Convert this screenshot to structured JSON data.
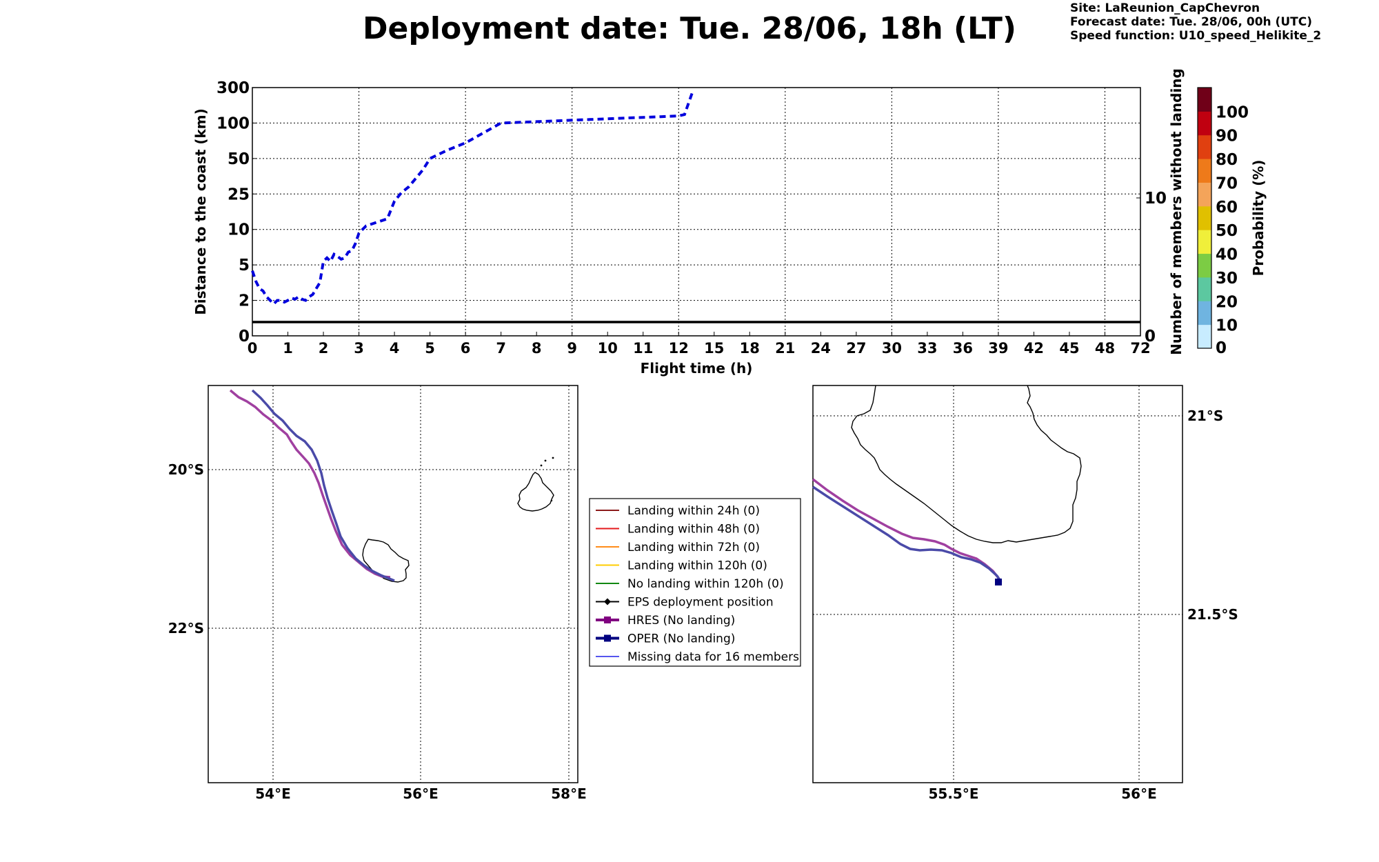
{
  "header": {
    "title": "Deployment date: Tue. 28/06, 18h (LT)",
    "site": "Site: LaReunion_CapChevron",
    "forecast_date": "Forecast date: Tue. 28/06, 00h (UTC)",
    "speed_function": "Speed function: U10_speed_Helikite_2"
  },
  "chart_data": [
    {
      "type": "line",
      "xlabel": "Flight time (h)",
      "ylabel": "Distance to the coast (km)",
      "ylabel_right": "Number of members without landing",
      "x_ticks": [
        "0",
        "1",
        "2",
        "3",
        "4",
        "5",
        "6",
        "7",
        "8",
        "9",
        "10",
        "11",
        "12",
        "15",
        "18",
        "21",
        "24",
        "27",
        "30",
        "33",
        "36",
        "39",
        "42",
        "45",
        "48",
        "72"
      ],
      "y_ticks": [
        "0",
        "2",
        "5",
        "10",
        "25",
        "50",
        "100",
        "300"
      ],
      "y_right_ticks": [
        "0",
        "10"
      ],
      "grid": true,
      "series": [
        {
          "style": "dashed",
          "color": "#0000dd",
          "x": [
            0,
            0.1,
            0.2,
            0.3,
            0.4,
            0.5,
            0.6,
            0.7,
            0.8,
            0.9,
            1.0,
            1.1,
            1.2,
            1.3,
            1.4,
            1.5,
            1.6,
            1.7,
            1.8,
            1.9,
            2.0,
            2.1,
            2.2,
            2.3,
            2.4,
            2.5,
            2.6,
            2.7,
            2.8,
            2.9,
            3.0,
            3.2,
            3.4,
            3.6,
            3.8,
            4.0,
            4.2,
            4.4,
            4.6,
            4.8,
            5.0,
            5.5,
            6.0,
            6.5,
            7.0,
            7.5,
            8.0,
            8.5,
            9.0,
            9.5,
            10.0,
            10.5,
            11.0,
            11.5,
            12.0,
            12.5,
            13.2
          ],
          "y": [
            4.5,
            3.6,
            3.0,
            2.8,
            2.3,
            2.0,
            1.8,
            2.0,
            2.0,
            1.9,
            2.0,
            2.2,
            2.1,
            2.3,
            2.1,
            2.0,
            2.3,
            2.5,
            3.0,
            3.5,
            5.5,
            6.0,
            5.5,
            6.5,
            6.2,
            5.8,
            6.0,
            6.8,
            7.0,
            8.0,
            9.5,
            11.5,
            12.5,
            13.5,
            14.5,
            22,
            26,
            30,
            36,
            42,
            50,
            62,
            72,
            86,
            100,
            104,
            108,
            112,
            116,
            120,
            124,
            128,
            132,
            136,
            140,
            148,
            280
          ]
        },
        {
          "style": "solid",
          "color": "#000000",
          "x": [
            0,
            72
          ],
          "y_members": [
            1,
            1
          ]
        }
      ]
    },
    {
      "type": "map",
      "x_ticks": [
        "54°E",
        "56°E",
        "58°E"
      ],
      "y_ticks": [
        "20°S",
        "22°S"
      ]
    },
    {
      "type": "map",
      "x_ticks": [
        "55.5°E",
        "56°E"
      ],
      "y_ticks": [
        "21°S",
        "21.5°S"
      ]
    }
  ],
  "colorbar": {
    "label": "Probability (%)",
    "ticks": [
      "0",
      "10",
      "20",
      "30",
      "40",
      "50",
      "60",
      "70",
      "80",
      "90",
      "100"
    ],
    "colors": [
      "#c8ecff",
      "#6fb4e0",
      "#5cc8a0",
      "#7ccc44",
      "#f0ef3a",
      "#e0c000",
      "#f4a45a",
      "#ee7a1a",
      "#e04010",
      "#c00010",
      "#700018"
    ]
  },
  "legend": {
    "items": [
      {
        "label": "Landing within 24h (0)",
        "color": "#8b1a1a",
        "marker": "none"
      },
      {
        "label": "Landing within 48h (0)",
        "color": "#e41a1c",
        "marker": "none"
      },
      {
        "label": "Landing within 72h (0)",
        "color": "#ff8c1a",
        "marker": "none"
      },
      {
        "label": "Landing within 120h (0)",
        "color": "#ffcc00",
        "marker": "none"
      },
      {
        "label": "No landing within 120h (0)",
        "color": "#118811",
        "marker": "none"
      },
      {
        "label": "EPS deployment position",
        "color": "#000000",
        "marker": "diamond"
      },
      {
        "label": "HRES (No landing)",
        "color": "#800080",
        "marker": "square"
      },
      {
        "label": "OPER (No landing)",
        "color": "#000080",
        "marker": "square"
      },
      {
        "label": "Missing data for 16 members",
        "color": "#5555ee",
        "marker": "none"
      }
    ]
  }
}
